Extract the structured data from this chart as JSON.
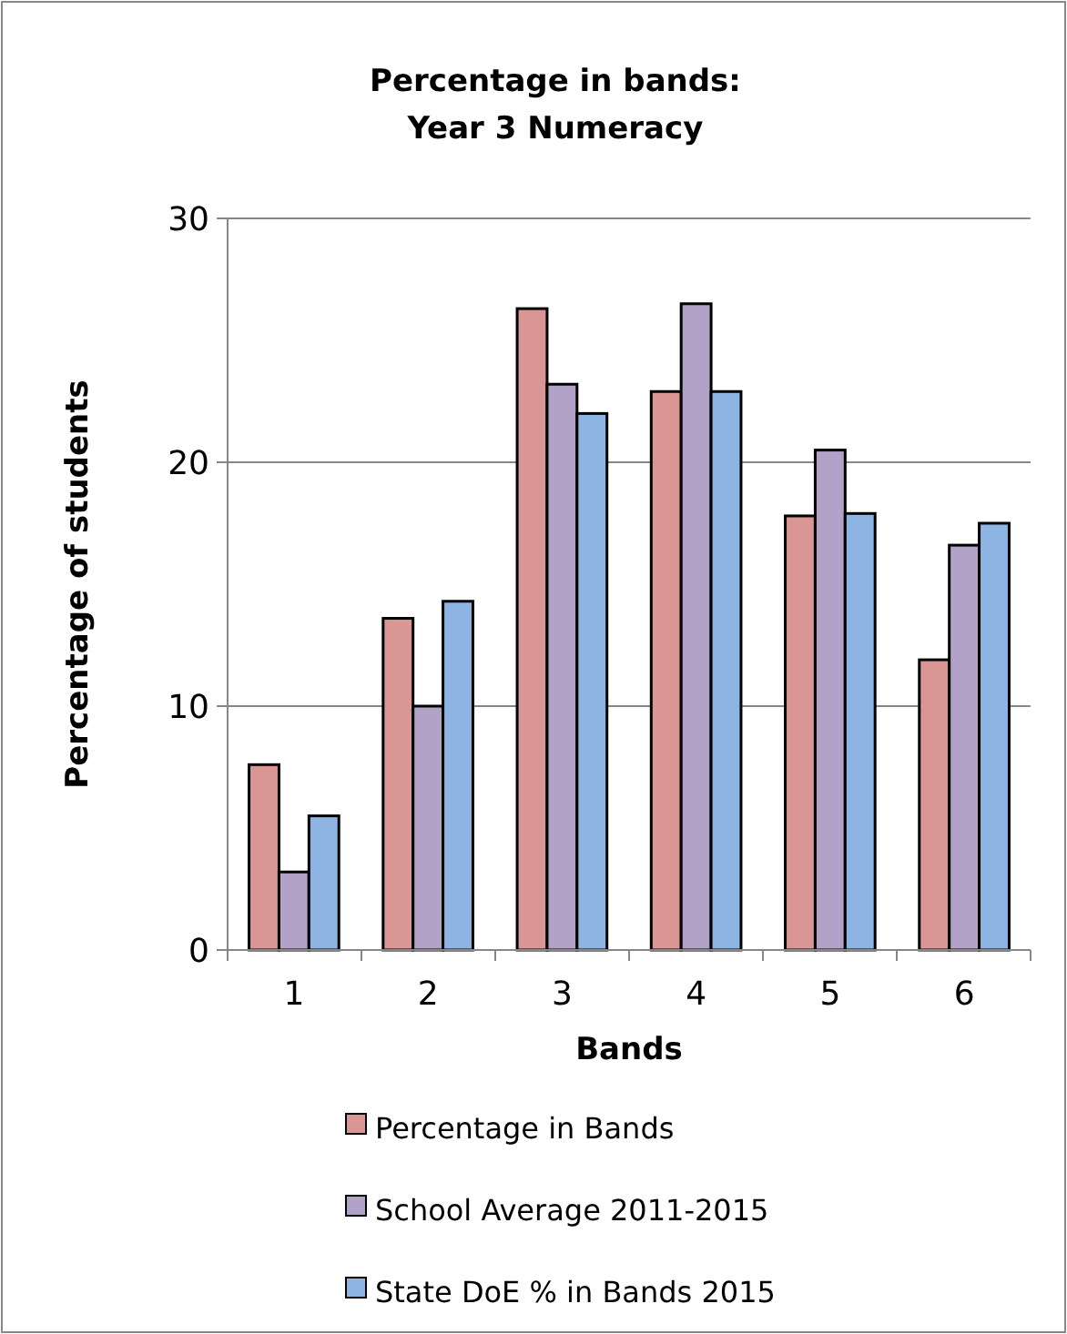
{
  "chart_data": {
    "type": "bar",
    "title": "Percentage in bands:\nYear 3 Numeracy",
    "xlabel": "Bands",
    "ylabel": "Percentage of students",
    "categories": [
      "1",
      "2",
      "3",
      "4",
      "5",
      "6"
    ],
    "series": [
      {
        "name": "Percentage in Bands",
        "color": "#d99694",
        "values": [
          7.6,
          13.6,
          26.3,
          22.9,
          17.8,
          11.9
        ]
      },
      {
        "name": "School Average 2011-2015",
        "color": "#b3a2c7",
        "values": [
          3.2,
          10.0,
          23.2,
          26.5,
          20.5,
          16.6
        ]
      },
      {
        "name": "State DoE % in Bands 2015",
        "color": "#8eb4e3",
        "values": [
          5.5,
          14.3,
          22.0,
          22.9,
          17.9,
          17.5
        ]
      }
    ],
    "ylim": [
      0,
      30
    ],
    "yticks": [
      0,
      10,
      20,
      30
    ],
    "grid": "y",
    "legend": "bottom"
  }
}
